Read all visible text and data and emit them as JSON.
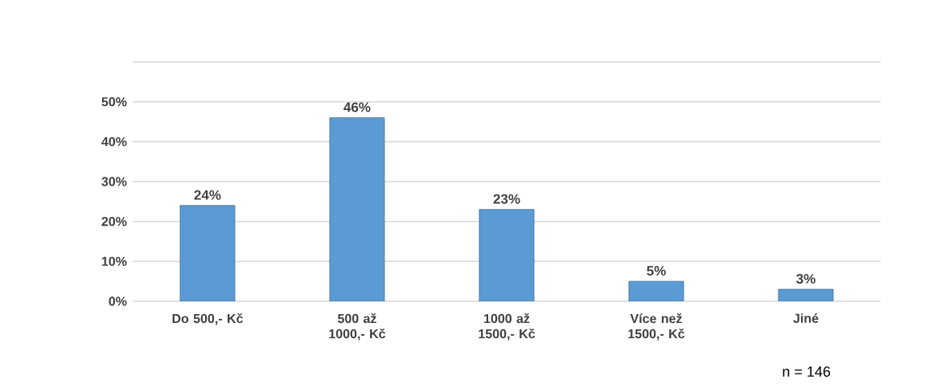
{
  "chart_data": {
    "type": "bar",
    "categories": [
      "Do 500,- Kč",
      "500 až 1000,- Kč",
      "1000 až 1500,- Kč",
      "Více než 1500,- Kč",
      "Jiné"
    ],
    "values": [
      24,
      46,
      23,
      5,
      3
    ],
    "value_labels": [
      "24%",
      "46%",
      "23%",
      "5%",
      "3%"
    ],
    "color": "#5b9bd5",
    "ylim": [
      0,
      60
    ],
    "yticks": [
      {
        "value": 0,
        "label": "0%"
      },
      {
        "value": 10,
        "label": "10%"
      },
      {
        "value": 20,
        "label": "20%"
      },
      {
        "value": 30,
        "label": "30%"
      },
      {
        "value": 40,
        "label": "40%"
      },
      {
        "value": 50,
        "label": "50%"
      },
      {
        "value": 60,
        "label": null
      }
    ],
    "grid": "y",
    "annotations": [
      "n = 146"
    ]
  }
}
